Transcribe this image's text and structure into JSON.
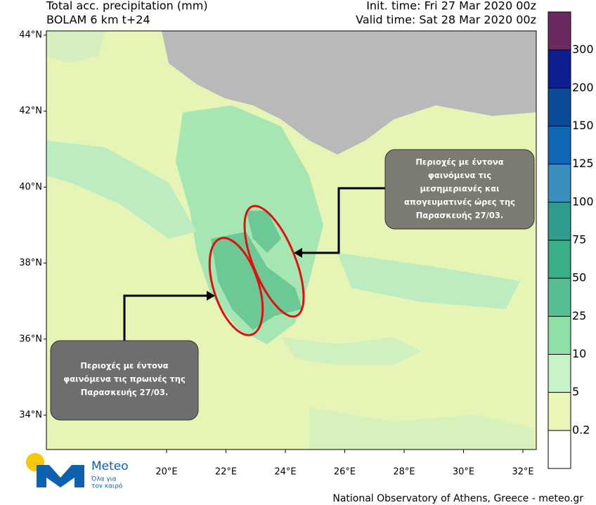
{
  "header": {
    "title": "Total acc. precipitation (mm)",
    "model": "BOLAM 6 km t+24",
    "init_time": "Init. time: Fri 27 Mar 2020 00z",
    "valid_time": "Valid time: Sat 28 Mar 2020 00z"
  },
  "map": {
    "lat_ticks": [
      {
        "value": 44,
        "label": "44°N"
      },
      {
        "value": 42,
        "label": "42°N"
      },
      {
        "value": 40,
        "label": "40°N"
      },
      {
        "value": 38,
        "label": "38°N"
      },
      {
        "value": 36,
        "label": "36°N"
      },
      {
        "value": 34,
        "label": "34°N"
      }
    ],
    "lon_ticks": [
      {
        "value": 20,
        "label": "20°E"
      },
      {
        "value": 22,
        "label": "22°E"
      },
      {
        "value": 24,
        "label": "24°E"
      },
      {
        "value": 26,
        "label": "26°E"
      },
      {
        "value": 28,
        "label": "28°E"
      },
      {
        "value": 30,
        "label": "30°E"
      },
      {
        "value": 32,
        "label": "32°E"
      }
    ]
  },
  "colorbar": {
    "levels": [
      300,
      200,
      150,
      125,
      100,
      75,
      50,
      25,
      10,
      5,
      0.2
    ],
    "colors": [
      "#6b2a5f",
      "#0d1f8f",
      "#0b4a94",
      "#1068b4",
      "#3b8fbf",
      "#2f9c8e",
      "#3aae86",
      "#55be92",
      "#8fe0a6",
      "#c8f3c8",
      "#eaf5b8",
      "#ffffff"
    ]
  },
  "annotations": {
    "afternoon": [
      "Περιοχές με έντονα",
      "φαινόμενα  τις",
      "μεσημεριανές και",
      "απογευματινές ώρες της",
      "Παρασκευής 27/03."
    ],
    "morning": [
      "Περιοχές με έντονα",
      "φαινόμενα  τις πρωινές της",
      "Παρασκευής 27/03."
    ]
  },
  "logo": {
    "name": "Meteo",
    "tagline": [
      "Όλα για",
      "τον καιρό"
    ]
  },
  "footer": "National Observatory of Athens, Greece - meteo.gr"
}
